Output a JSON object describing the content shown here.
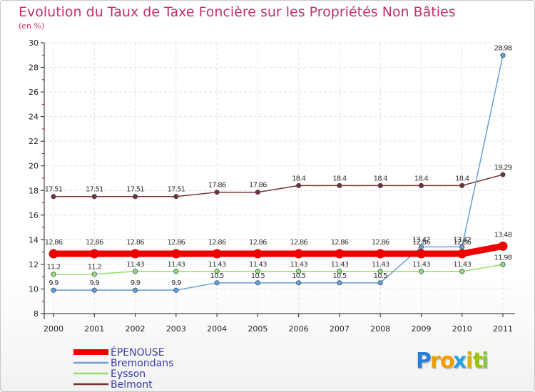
{
  "chart_data": {
    "type": "line",
    "title": "Evolution du Taux de Taxe Foncière sur les Propriétés Non Bâties",
    "subtitle": "(en %)",
    "xlabel": "",
    "ylabel": "",
    "ylim": [
      8,
      30
    ],
    "yticks": [
      "8",
      "10",
      "12",
      "14",
      "16",
      "18",
      "20",
      "22",
      "24",
      "26",
      "28",
      "30"
    ],
    "categories": [
      "2000",
      "2001",
      "2002",
      "2003",
      "2004",
      "2005",
      "2006",
      "2007",
      "2008",
      "2009",
      "2010",
      "2011"
    ],
    "grid": true,
    "legend_position": "bottom-left",
    "series": [
      {
        "name": "ÉPENOUSE",
        "color": "#ee0000",
        "values": [
          12.86,
          12.86,
          12.86,
          12.86,
          12.86,
          12.86,
          12.86,
          12.86,
          12.86,
          12.86,
          12.86,
          13.48
        ],
        "labels": [
          "12.86",
          "12.86",
          "12.86",
          "12.86",
          "12.86",
          "12.86",
          "12.86",
          "12.86",
          "12.86",
          "12.86",
          "12.86",
          "13.48"
        ]
      },
      {
        "name": "Bremondans",
        "color": "#6b9ed6",
        "values": [
          9.9,
          9.9,
          9.9,
          9.9,
          10.5,
          10.5,
          10.5,
          10.5,
          10.5,
          13.42,
          13.42,
          28.98
        ],
        "labels": [
          "9.9",
          "9.9",
          "9.9",
          "9.9",
          "10.5",
          "10.5",
          "10.5",
          "10.5",
          "10.5",
          "13.42",
          "13.42",
          "28.98"
        ]
      },
      {
        "name": "Eysson",
        "color": "#99dd66",
        "values": [
          11.2,
          11.2,
          11.43,
          11.43,
          11.43,
          11.43,
          11.43,
          11.43,
          11.43,
          11.43,
          11.43,
          11.98
        ],
        "labels": [
          "11.2",
          "11.2",
          "11.43",
          "11.43",
          "11.43",
          "11.43",
          "11.43",
          "11.43",
          "11.43",
          "11.43",
          "11.43",
          "11.98"
        ]
      },
      {
        "name": "Belmont",
        "color": "#7a3030",
        "values": [
          17.51,
          17.51,
          17.51,
          17.51,
          17.86,
          17.86,
          18.4,
          18.4,
          18.4,
          18.4,
          18.4,
          19.29
        ],
        "labels": [
          "17.51",
          "17.51",
          "17.51",
          "17.51",
          "17.86",
          "17.86",
          "18.4",
          "18.4",
          "18.4",
          "18.4",
          "18.4",
          "19.29"
        ]
      }
    ]
  },
  "logo": {
    "letters": [
      "P",
      "r",
      "o",
      "x",
      "i",
      "t",
      "i"
    ],
    "colors": [
      "#2a7fd4",
      "#e8a000",
      "#f29c00",
      "#2aa0e0",
      "#d9b000",
      "#9ac400",
      "#8bc34a"
    ]
  }
}
